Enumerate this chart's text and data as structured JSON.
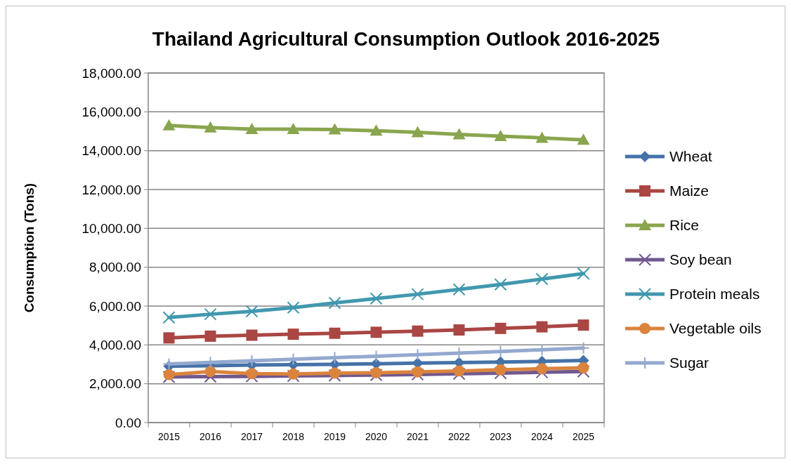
{
  "chart_data": {
    "type": "line",
    "title": "Thailand Agricultural Consumption Outlook 2016-2025",
    "ylabel": "Consumption (Tons)",
    "categories": [
      "2015",
      "2016",
      "2017",
      "2018",
      "2019",
      "2020",
      "2021",
      "2022",
      "2023",
      "2024",
      "2025"
    ],
    "ylim": [
      0,
      18000
    ],
    "yticks": [
      {
        "value": 0,
        "label": "0.00"
      },
      {
        "value": 2000,
        "label": "2,000.00"
      },
      {
        "value": 4000,
        "label": "4,000.00"
      },
      {
        "value": 6000,
        "label": "6,000.00"
      },
      {
        "value": 8000,
        "label": "8,000.00"
      },
      {
        "value": 10000,
        "label": "10,000.00"
      },
      {
        "value": 12000,
        "label": "12,000.00"
      },
      {
        "value": 14000,
        "label": "14,000.00"
      },
      {
        "value": 16000,
        "label": "16,000.00"
      },
      {
        "value": 18000,
        "label": "18,000.00"
      }
    ],
    "grid": "y",
    "legend": "right",
    "line_style": "solid",
    "series": [
      {
        "name": "Wheat",
        "color": "#4572a7",
        "marker": "diamond",
        "values": [
          2900,
          2930,
          2960,
          2980,
          3000,
          3030,
          3060,
          3090,
          3120,
          3150,
          3200
        ]
      },
      {
        "name": "Maize",
        "color": "#aa4643",
        "marker": "square",
        "values": [
          4360,
          4450,
          4500,
          4550,
          4600,
          4650,
          4710,
          4770,
          4850,
          4930,
          5020
        ]
      },
      {
        "name": "Rice",
        "color": "#89a54e",
        "marker": "triangle",
        "values": [
          15300,
          15190,
          15110,
          15110,
          15090,
          15030,
          14950,
          14840,
          14750,
          14660,
          14560
        ]
      },
      {
        "name": "Soy bean",
        "color": "#71588f",
        "marker": "cross",
        "values": [
          2350,
          2370,
          2380,
          2400,
          2420,
          2450,
          2480,
          2510,
          2550,
          2590,
          2630
        ]
      },
      {
        "name": "Protein meals",
        "color": "#4198af",
        "marker": "cross",
        "values": [
          5410,
          5580,
          5730,
          5920,
          6160,
          6390,
          6610,
          6860,
          7110,
          7390,
          7670
        ]
      },
      {
        "name": "Vegetable oils",
        "color": "#db843d",
        "marker": "circle",
        "values": [
          2470,
          2630,
          2520,
          2500,
          2550,
          2570,
          2610,
          2660,
          2720,
          2770,
          2820
        ]
      },
      {
        "name": "Sugar",
        "color": "#93a9cf",
        "marker": "plus",
        "values": [
          3020,
          3100,
          3180,
          3260,
          3340,
          3420,
          3500,
          3580,
          3660,
          3750,
          3840
        ]
      }
    ]
  }
}
